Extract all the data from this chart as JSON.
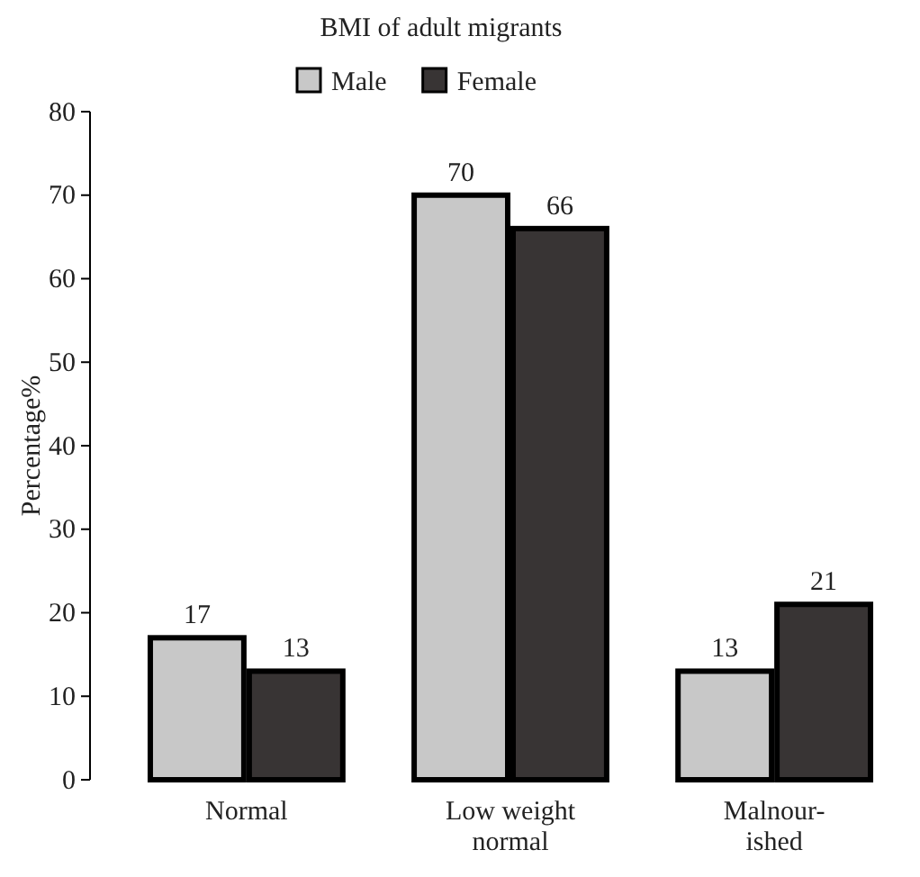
{
  "chart_data": {
    "type": "bar",
    "title": "BMI of adult migrants",
    "ylabel": "Percentage%",
    "categories": [
      "Normal",
      "Low weight normal",
      "Malnour-ished"
    ],
    "series": [
      {
        "name": "Male",
        "color": "#c8c8c8",
        "values": [
          17,
          70,
          13
        ]
      },
      {
        "name": "Female",
        "color": "#383434",
        "values": [
          13,
          66,
          21
        ]
      }
    ],
    "ylim": [
      0,
      80
    ],
    "yticks": [
      0,
      10,
      20,
      30,
      40,
      50,
      60,
      70,
      80
    ],
    "data_labels": true,
    "legend": "top",
    "grid": false
  }
}
